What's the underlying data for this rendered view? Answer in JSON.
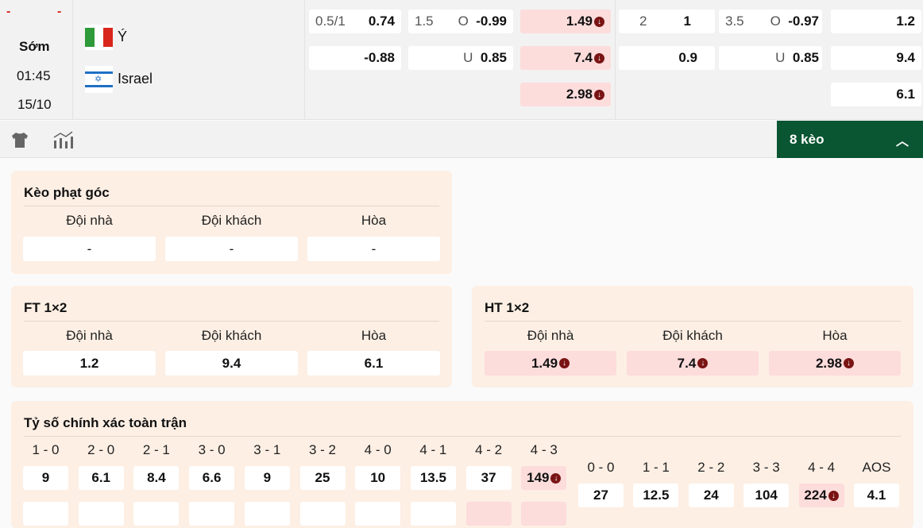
{
  "match": {
    "home_score": "-",
    "away_score": "-",
    "status": "Sớm",
    "time": "01:45",
    "date": "15/10",
    "home_team": "Ý",
    "away_team": "Israel"
  },
  "odds": {
    "ft_handicap": {
      "line": "0.5/1",
      "home": "0.74",
      "away": "-0.88"
    },
    "ft_overunder": {
      "line": "1.5",
      "over_label": "O",
      "over": "-0.99",
      "under_label": "U",
      "under": "0.85"
    },
    "ht_1x2": {
      "home": "1.49",
      "away": "7.4",
      "draw": "2.98",
      "trend": "down"
    },
    "ht_handicap": {
      "line": "2",
      "home": "1",
      "away": "0.9"
    },
    "ht_overunder": {
      "line": "3.5",
      "over_label": "O",
      "over": "-0.97",
      "under_label": "U",
      "under": "0.85"
    },
    "ft_1x2": {
      "home": "1.2",
      "away": "9.4",
      "draw": "6.1"
    }
  },
  "toolbar": {
    "icons": [
      "shirt-icon",
      "stats-chart-icon"
    ],
    "more_label": "8 kèo",
    "more_icon": "chevron-up-icon"
  },
  "colors": {
    "accent": "#0a5532",
    "down_bg": "#fddcdc",
    "down_icon": "#7a1414",
    "card_bg": "#fdefe4"
  },
  "corner": {
    "title": "Kèo phạt góc",
    "headers": [
      "Đội nhà",
      "Đội khách",
      "Hòa"
    ],
    "values": [
      "-",
      "-",
      "-"
    ]
  },
  "ft12": {
    "title": "FT 1×2",
    "headers": [
      "Đội nhà",
      "Đội khách",
      "Hòa"
    ],
    "values": [
      "1.2",
      "9.4",
      "6.1"
    ]
  },
  "ht12": {
    "title": "HT 1×2",
    "headers": [
      "Đội nhà",
      "Đội khách",
      "Hòa"
    ],
    "values": [
      "1.49",
      "7.4",
      "2.98"
    ]
  },
  "correct_score": {
    "title": "Tỷ số chính xác toàn trận",
    "home_wins": [
      {
        "s": "1 - 0",
        "v": "9"
      },
      {
        "s": "2 - 0",
        "v": "6.1"
      },
      {
        "s": "2 - 1",
        "v": "8.4"
      },
      {
        "s": "3 - 0",
        "v": "6.6"
      },
      {
        "s": "3 - 1",
        "v": "9"
      },
      {
        "s": "3 - 2",
        "v": "25"
      },
      {
        "s": "4 - 0",
        "v": "10"
      },
      {
        "s": "4 - 1",
        "v": "13.5"
      },
      {
        "s": "4 - 2",
        "v": "37"
      },
      {
        "s": "4 - 3",
        "v": "149",
        "down": true
      }
    ],
    "draws": [
      {
        "s": "0 - 0",
        "v": "27"
      },
      {
        "s": "1 - 1",
        "v": "12.5"
      },
      {
        "s": "2 - 2",
        "v": "24"
      },
      {
        "s": "3 - 3",
        "v": "104"
      },
      {
        "s": "4 - 4",
        "v": "224",
        "down": true
      },
      {
        "s": "AOS",
        "v": "4.1"
      }
    ]
  }
}
